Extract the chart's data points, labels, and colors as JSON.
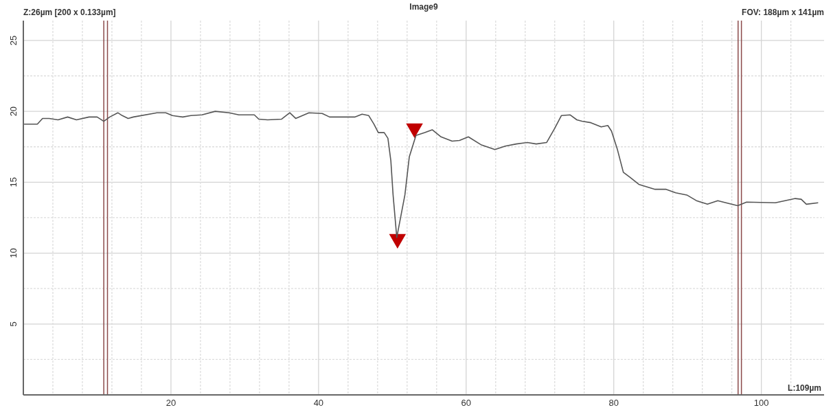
{
  "chart_data": {
    "type": "line",
    "title": "Image9",
    "annotations": [
      "Z:26µm [200 x 0.133µm]",
      "FOV: 188µm x 141µm",
      "L:109µm"
    ],
    "xlim": [
      0,
      108.5
    ],
    "ylim": [
      0,
      26.4
    ],
    "xticks": [
      {
        "value": 4,
        "label": null
      },
      {
        "value": 8,
        "label": null
      },
      {
        "value": 12,
        "label": null
      },
      {
        "value": 16,
        "label": null
      },
      20,
      {
        "value": 24,
        "label": null
      },
      {
        "value": 28,
        "label": null
      },
      {
        "value": 32,
        "label": null
      },
      {
        "value": 36,
        "label": null
      },
      40,
      {
        "value": 44,
        "label": null
      },
      {
        "value": 48,
        "label": null
      },
      {
        "value": 52,
        "label": null
      },
      {
        "value": 56,
        "label": null
      },
      60,
      {
        "value": 64,
        "label": null
      },
      {
        "value": 68,
        "label": null
      },
      {
        "value": 72,
        "label": null
      },
      {
        "value": 76,
        "label": null
      },
      80,
      {
        "value": 84,
        "label": null
      },
      {
        "value": 88,
        "label": null
      },
      {
        "value": 92,
        "label": null
      },
      {
        "value": 96,
        "label": null
      },
      100,
      {
        "value": 104,
        "label": null
      }
    ],
    "yticks": [
      {
        "value": 2.5,
        "label": null
      },
      5,
      {
        "value": 7.5,
        "label": null
      },
      10,
      {
        "value": 12.5,
        "label": null
      },
      15,
      {
        "value": 17.5,
        "label": null
      },
      20,
      {
        "value": 22.5,
        "label": null
      },
      25
    ],
    "grid": true,
    "ref_lines": [
      {
        "axis": "x",
        "value": 10.9,
        "color": "#8b4a4a"
      },
      {
        "axis": "x",
        "value": 11.4,
        "color": "#8b4a4a"
      },
      {
        "axis": "x",
        "value": 96.85,
        "color": "#8b4a4a"
      },
      {
        "axis": "x",
        "value": 97.3,
        "color": "#8b4a4a"
      }
    ],
    "series": [
      {
        "color": "#555555",
        "x": [
          0.1,
          1.9,
          2.6,
          3.5,
          4.7,
          6.0,
          7.2,
          8.9,
          10.0,
          10.9,
          11.7,
          12.8,
          13.4,
          14.2,
          14.9,
          18.1,
          19.3,
          20.2,
          21.6,
          22.7,
          24.2,
          26.0,
          27.9,
          29.2,
          31.3,
          31.9,
          33.1,
          35.0,
          36.1,
          36.9,
          38.7,
          40.5,
          41.5,
          44.9,
          45.9,
          46.8,
          47.5,
          48.1,
          48.9,
          49.4,
          49.8,
          50.1,
          50.6,
          51.7,
          52.3,
          53.2,
          54.4,
          55.4,
          56.6,
          58.1,
          59.1,
          60.3,
          62.0,
          63.9,
          65.3,
          66.8,
          68.3,
          69.5,
          70.9,
          72.0,
          72.9,
          74.1,
          75.0,
          75.7,
          76.9,
          78.3,
          79.2,
          79.7,
          80.5,
          81.3,
          82.2,
          83.4,
          85.6,
          87.1,
          88.4,
          89.9,
          91.2,
          92.7,
          94.1,
          95.2,
          96.8,
          98.0,
          101.9,
          103.2,
          104.6,
          105.4,
          106.1,
          107.7
        ],
        "values": [
          19.1,
          19.1,
          19.5,
          19.5,
          19.4,
          19.6,
          19.4,
          19.6,
          19.6,
          19.3,
          19.6,
          19.9,
          19.7,
          19.5,
          19.6,
          19.9,
          19.9,
          19.7,
          19.6,
          19.7,
          19.75,
          20.0,
          19.9,
          19.75,
          19.75,
          19.45,
          19.4,
          19.45,
          19.9,
          19.5,
          19.9,
          19.85,
          19.6,
          19.6,
          19.8,
          19.7,
          19.1,
          18.5,
          18.5,
          18.1,
          16.5,
          14.1,
          11.1,
          14.1,
          16.8,
          18.3,
          18.5,
          18.7,
          18.2,
          17.9,
          17.95,
          18.2,
          17.65,
          17.3,
          17.55,
          17.7,
          17.8,
          17.7,
          17.8,
          18.8,
          19.7,
          19.75,
          19.4,
          19.3,
          19.2,
          18.9,
          19.0,
          18.6,
          17.3,
          15.7,
          15.35,
          14.85,
          14.5,
          14.5,
          14.25,
          14.1,
          13.7,
          13.45,
          13.7,
          13.55,
          13.35,
          13.6,
          13.55,
          13.7,
          13.85,
          13.8,
          13.45,
          13.55
        ]
      },
      {
        "type": "scatter",
        "color": "#c00000",
        "marker": "triangle",
        "x": [
          50.7,
          53.0
        ],
        "values": [
          11.0,
          18.8
        ]
      }
    ]
  }
}
